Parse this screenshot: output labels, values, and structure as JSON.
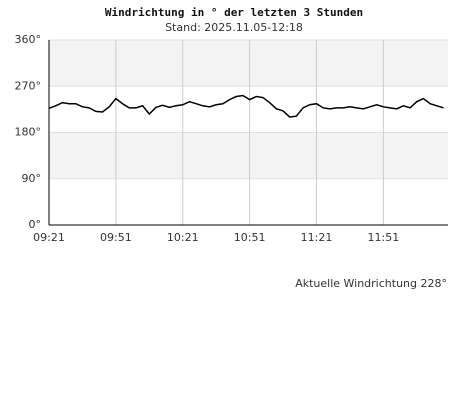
{
  "chart_data": {
    "type": "line",
    "title": "Windrichtung in ° der letzten 3 Stunden",
    "subtitle": "Stand: 2025.11.05-12:18",
    "annotation": "Aktuelle Windrichtung 228°",
    "x": [
      "09:21",
      "09:24",
      "09:27",
      "09:30",
      "09:33",
      "09:36",
      "09:39",
      "09:42",
      "09:45",
      "09:48",
      "09:51",
      "09:54",
      "09:57",
      "10:00",
      "10:03",
      "10:06",
      "10:09",
      "10:12",
      "10:15",
      "10:18",
      "10:21",
      "10:24",
      "10:27",
      "10:30",
      "10:33",
      "10:36",
      "10:39",
      "10:42",
      "10:45",
      "10:48",
      "10:51",
      "10:54",
      "10:57",
      "11:00",
      "11:03",
      "11:06",
      "11:09",
      "11:12",
      "11:15",
      "11:18",
      "11:21",
      "11:24",
      "11:27",
      "11:30",
      "11:33",
      "11:36",
      "11:39",
      "11:42",
      "11:45",
      "11:48",
      "11:51",
      "11:54",
      "11:57",
      "12:00",
      "12:03",
      "12:06",
      "12:09",
      "12:12",
      "12:15",
      "12:18"
    ],
    "series": [
      {
        "name": "Windrichtung",
        "color": "#000000",
        "values": [
          227,
          232,
          238,
          236,
          236,
          230,
          228,
          221,
          220,
          230,
          246,
          236,
          228,
          228,
          232,
          216,
          229,
          233,
          229,
          232,
          234,
          240,
          236,
          232,
          230,
          234,
          236,
          244,
          250,
          252,
          244,
          250,
          248,
          238,
          226,
          222,
          210,
          212,
          228,
          234,
          236,
          228,
          226,
          228,
          228,
          230,
          228,
          226,
          230,
          234,
          230,
          228,
          226,
          232,
          228,
          240,
          246,
          236,
          232,
          228
        ]
      }
    ],
    "xlim": [
      "09:21",
      "12:20"
    ],
    "xticks": [
      "09:21",
      "09:51",
      "10:21",
      "10:51",
      "11:21",
      "11:51"
    ],
    "ylim": [
      0,
      360
    ],
    "yticks": [
      {
        "value": 0,
        "label": "0°"
      },
      {
        "value": 90,
        "label": "90°"
      },
      {
        "value": 180,
        "label": "180°"
      },
      {
        "value": 270,
        "label": "270°"
      },
      {
        "value": 360,
        "label": "360°"
      }
    ],
    "band_colors": [
      "#ffffff",
      "#f3f3f3"
    ],
    "grid": true
  }
}
